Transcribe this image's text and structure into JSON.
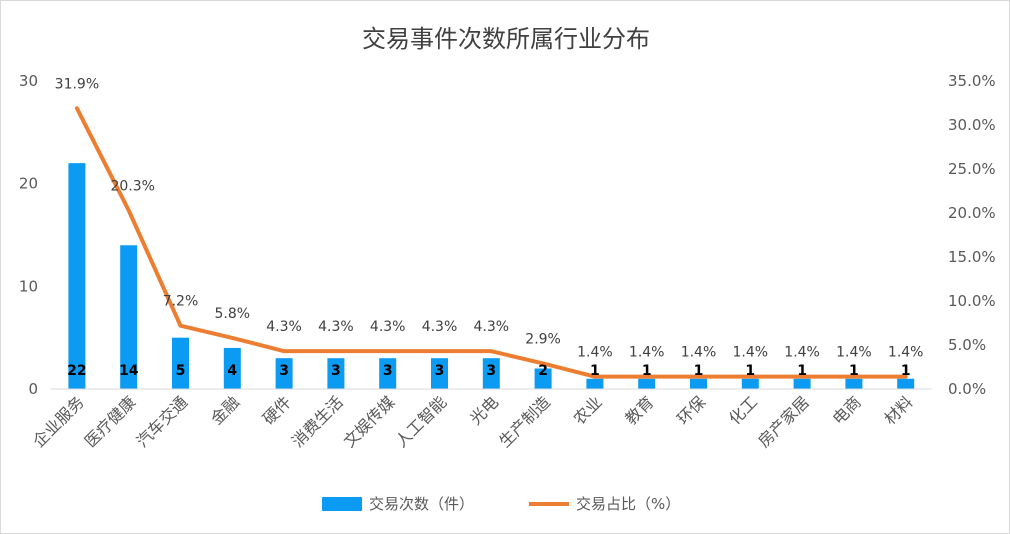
{
  "chart_data": {
    "type": "bar+line",
    "title": "交易事件次数所属行业分布",
    "categories": [
      "企业服务",
      "医疗健康",
      "汽车交通",
      "金融",
      "硬件",
      "消费生活",
      "文娱传媒",
      "人工智能",
      "光电",
      "生产制造",
      "农业",
      "教育",
      "环保",
      "化工",
      "房产家居",
      "电商",
      "材料"
    ],
    "series": [
      {
        "name": "交易次数（件）",
        "type": "bar",
        "axis": "left",
        "color": "#0b9bf2",
        "values": [
          22,
          14,
          5,
          4,
          3,
          3,
          3,
          3,
          3,
          2,
          1,
          1,
          1,
          1,
          1,
          1,
          1
        ],
        "labels": [
          "22",
          "14",
          "5",
          "4",
          "3",
          "3",
          "3",
          "3",
          "3",
          "2",
          "1",
          "1",
          "1",
          "1",
          "1",
          "1",
          "1"
        ]
      },
      {
        "name": "交易占比（%）",
        "type": "line",
        "axis": "right",
        "color": "#ed7d31",
        "values": [
          31.9,
          20.3,
          7.2,
          5.8,
          4.3,
          4.3,
          4.3,
          4.3,
          4.3,
          2.9,
          1.4,
          1.4,
          1.4,
          1.4,
          1.4,
          1.4,
          1.4
        ],
        "labels": [
          "31.9%",
          "20.3%",
          "7.2%",
          "5.8%",
          "4.3%",
          "4.3%",
          "4.3%",
          "4.3%",
          "4.3%",
          "2.9%",
          "1.4%",
          "1.4%",
          "1.4%",
          "1.4%",
          "1.4%",
          "1.4%",
          "1.4%"
        ]
      }
    ],
    "y_left": {
      "ylim": [
        0,
        30
      ],
      "ticks": [
        "0",
        "10",
        "20",
        "30"
      ]
    },
    "y_right": {
      "ylim": [
        0,
        35
      ],
      "ticks": [
        "0.0%",
        "5.0%",
        "10.0%",
        "15.0%",
        "20.0%",
        "25.0%",
        "30.0%",
        "35.0%"
      ]
    },
    "grid": false,
    "legend_position": "bottom"
  }
}
